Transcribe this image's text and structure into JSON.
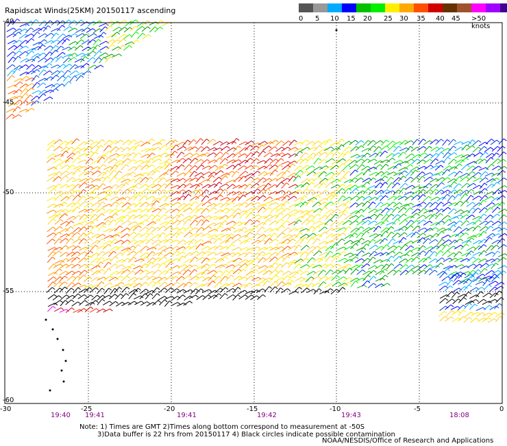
{
  "title": "Rapidscat Winds(25KM) 20150117 ascending",
  "legend": {
    "labels": [
      "0",
      "5",
      "10",
      "15",
      "20",
      "25",
      "30",
      "35",
      "40",
      "45",
      ">50 knots"
    ],
    "colors": [
      "#555555",
      "#999999",
      "#00aaff",
      "#0000ff",
      "#00c000",
      "#00ee00",
      "#ffee00",
      "#ffaa00",
      "#ff5000",
      "#d00000",
      "#663300",
      "#a0522d",
      "#ff00ff",
      "#a000ff",
      "#400090"
    ]
  },
  "axes": {
    "lat_labels": [
      "-40",
      "-45",
      "-50",
      "-55",
      "-60"
    ],
    "lon_labels": [
      "-30",
      "-25",
      "-20",
      "-15",
      "-10",
      "-5",
      "0"
    ],
    "time_labels": [
      "19:40",
      "19:41",
      "19:41",
      "19:42",
      "19:43",
      "18:08"
    ]
  },
  "notes": {
    "line1": "Note: 1) Times are GMT 2)Times along bottom correspond to measurement at -50S",
    "line2": "3)Data buffer is 22 hrs from 20150117 4) Black circles indicate possible contamination"
  },
  "credit": "NOAA/NESDIS/Office of Research and Applications"
}
